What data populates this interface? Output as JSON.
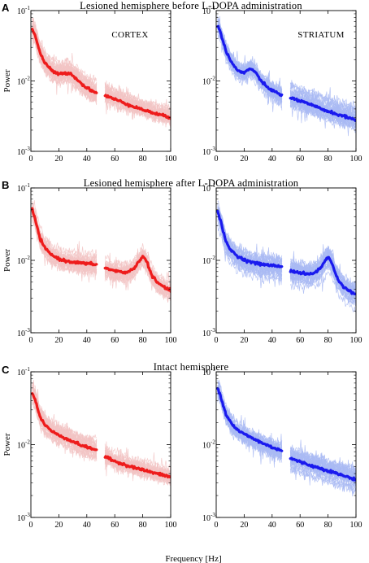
{
  "colors": {
    "cortex_mean": "#ee1c1c",
    "cortex_trials": "#f2c4c4",
    "striatum_mean": "#1a1aee",
    "striatum_trials": "#a9baf3",
    "axes": "#000000"
  },
  "panels": [
    {
      "letter": "A",
      "title": "Lesioned hemisphere before L-DOPA administration"
    },
    {
      "letter": "B",
      "title": "Lesioned hemisphere after L-DOPA administration"
    },
    {
      "letter": "C",
      "title": "Intact hemisphere"
    }
  ],
  "region_labels": {
    "cortex": "CORTEX",
    "striatum": "STRIATUM"
  },
  "axis": {
    "ylabel": "Power",
    "xlabel": "Frequency [Hz]",
    "x_ticks": [
      "0",
      "20",
      "40",
      "60",
      "80",
      "100"
    ],
    "y_tick_base": "10",
    "y_tick_exponents": [
      "-1",
      "-2",
      "-3"
    ]
  },
  "chart_data": [
    {
      "type": "line",
      "panel": "A",
      "region": "cortex",
      "xlim": [
        0,
        100
      ],
      "ylim": [
        0.001,
        0.1
      ],
      "y_scale": "log",
      "gap": [
        47,
        53
      ],
      "series": [
        {
          "x": [
            1,
            3,
            5,
            7,
            10,
            13,
            16,
            20,
            24,
            28,
            32,
            36,
            40,
            44,
            47
          ],
          "values": [
            0.055,
            0.045,
            0.032,
            0.024,
            0.018,
            0.0155,
            0.0135,
            0.0125,
            0.0128,
            0.013,
            0.011,
            0.0092,
            0.008,
            0.0072,
            0.0068
          ]
        },
        {
          "x": [
            53,
            60,
            70,
            80,
            90,
            100
          ],
          "values": [
            0.0062,
            0.0055,
            0.0046,
            0.0039,
            0.0034,
            0.003
          ]
        }
      ]
    },
    {
      "type": "line",
      "panel": "A",
      "region": "striatum",
      "xlim": [
        0,
        100
      ],
      "ylim": [
        0.001,
        0.1
      ],
      "y_scale": "log",
      "gap": [
        47,
        53
      ],
      "series": [
        {
          "x": [
            1,
            3,
            5,
            7,
            10,
            13,
            16,
            20,
            24,
            27,
            30,
            34,
            38,
            42,
            47
          ],
          "values": [
            0.06,
            0.05,
            0.036,
            0.027,
            0.02,
            0.016,
            0.0138,
            0.013,
            0.015,
            0.014,
            0.0115,
            0.009,
            0.0078,
            0.007,
            0.0062
          ]
        },
        {
          "x": [
            53,
            60,
            70,
            80,
            90,
            100
          ],
          "values": [
            0.0058,
            0.0052,
            0.0044,
            0.0037,
            0.0032,
            0.0028
          ]
        }
      ]
    },
    {
      "type": "line",
      "panel": "B",
      "region": "cortex",
      "xlim": [
        0,
        100
      ],
      "ylim": [
        0.001,
        0.1
      ],
      "y_scale": "log",
      "gap": [
        47,
        53
      ],
      "series": [
        {
          "x": [
            1,
            3,
            5,
            7,
            10,
            13,
            16,
            20,
            25,
            30,
            35,
            40,
            47
          ],
          "values": [
            0.05,
            0.037,
            0.026,
            0.019,
            0.0148,
            0.0128,
            0.0115,
            0.0105,
            0.0098,
            0.0095,
            0.0092,
            0.009,
            0.0088
          ]
        },
        {
          "x": [
            53,
            60,
            66,
            70,
            74,
            77,
            80,
            83,
            86,
            90,
            95,
            100
          ],
          "values": [
            0.0078,
            0.0072,
            0.0068,
            0.007,
            0.0078,
            0.0095,
            0.0115,
            0.0095,
            0.0065,
            0.005,
            0.0043,
            0.0038
          ]
        }
      ]
    },
    {
      "type": "line",
      "panel": "B",
      "region": "striatum",
      "xlim": [
        0,
        100
      ],
      "ylim": [
        0.001,
        0.1
      ],
      "y_scale": "log",
      "gap": [
        47,
        53
      ],
      "series": [
        {
          "x": [
            1,
            3,
            5,
            7,
            10,
            13,
            16,
            20,
            25,
            30,
            35,
            40,
            47
          ],
          "values": [
            0.048,
            0.036,
            0.025,
            0.018,
            0.0142,
            0.0125,
            0.0112,
            0.0102,
            0.0095,
            0.009,
            0.0087,
            0.0085,
            0.0082
          ]
        },
        {
          "x": [
            53,
            60,
            66,
            70,
            74,
            77,
            80,
            83,
            86,
            90,
            95,
            100
          ],
          "values": [
            0.0072,
            0.0067,
            0.0064,
            0.0067,
            0.0076,
            0.0092,
            0.0112,
            0.009,
            0.006,
            0.0045,
            0.0038,
            0.0034
          ]
        }
      ]
    },
    {
      "type": "line",
      "panel": "C",
      "region": "cortex",
      "xlim": [
        0,
        100
      ],
      "ylim": [
        0.001,
        0.1
      ],
      "y_scale": "log",
      "gap": [
        47,
        53
      ],
      "series": [
        {
          "x": [
            1,
            3,
            5,
            7,
            10,
            13,
            16,
            20,
            25,
            30,
            35,
            40,
            47
          ],
          "values": [
            0.05,
            0.042,
            0.03,
            0.023,
            0.019,
            0.0165,
            0.0148,
            0.0135,
            0.0122,
            0.011,
            0.01,
            0.0092,
            0.0085
          ]
        },
        {
          "x": [
            53,
            60,
            70,
            80,
            90,
            100
          ],
          "values": [
            0.0068,
            0.0059,
            0.0051,
            0.0045,
            0.004,
            0.0036
          ]
        }
      ]
    },
    {
      "type": "line",
      "panel": "C",
      "region": "striatum",
      "xlim": [
        0,
        100
      ],
      "ylim": [
        0.001,
        0.1
      ],
      "y_scale": "log",
      "gap": [
        47,
        53
      ],
      "series": [
        {
          "x": [
            1,
            3,
            5,
            7,
            10,
            13,
            16,
            20,
            25,
            30,
            35,
            40,
            47
          ],
          "values": [
            0.06,
            0.048,
            0.035,
            0.026,
            0.021,
            0.0175,
            0.0155,
            0.014,
            0.0125,
            0.0112,
            0.0101,
            0.0092,
            0.0083
          ]
        },
        {
          "x": [
            53,
            60,
            70,
            80,
            90,
            100
          ],
          "values": [
            0.0065,
            0.0058,
            0.005,
            0.0044,
            0.0038,
            0.0033
          ]
        }
      ]
    }
  ]
}
